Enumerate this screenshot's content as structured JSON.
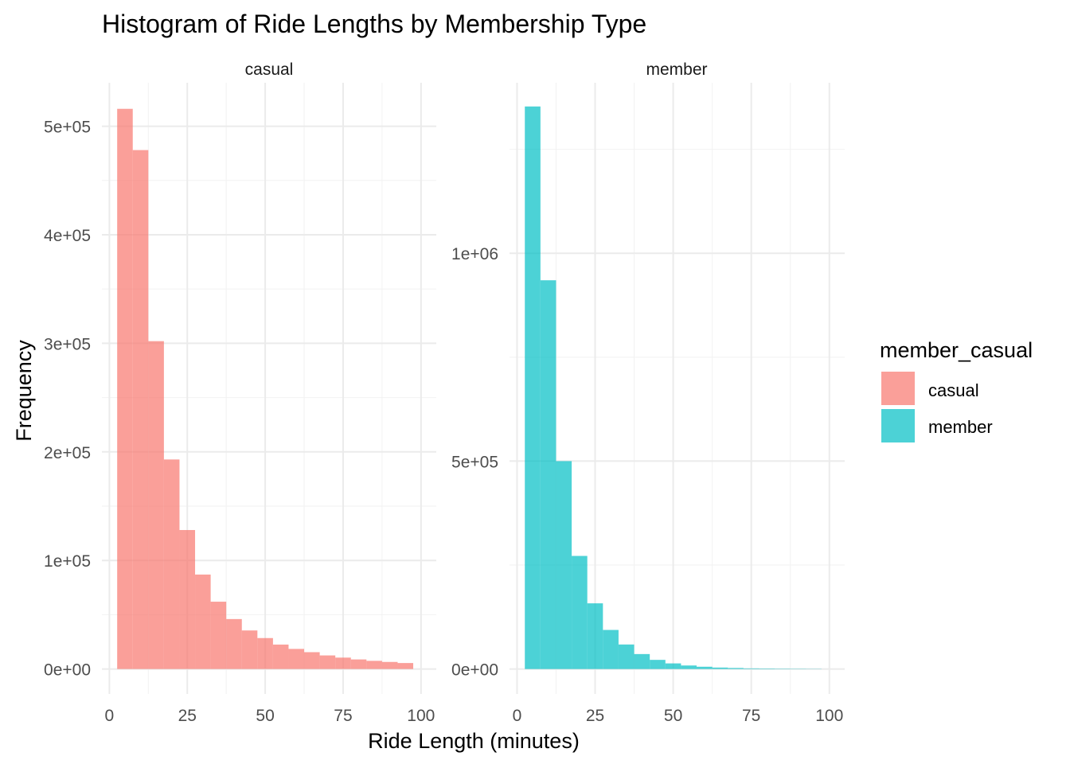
{
  "chart_data": {
    "type": "bar",
    "title": "Histogram of Ride Lengths by Membership Type",
    "xlabel": "Ride Length (minutes)",
    "ylabel": "Frequency",
    "legend": {
      "title": "member_casual",
      "placement": "right",
      "entries": [
        "casual",
        "member"
      ]
    },
    "grid": true,
    "bin_width": 5,
    "x_ticks": [
      "0",
      "25",
      "50",
      "75",
      "100"
    ],
    "x_tick_values": [
      0,
      25,
      50,
      75,
      100
    ],
    "xlim": [
      -2.4,
      104.9
    ],
    "panels": [
      {
        "label": "casual",
        "color": "#F8766D",
        "ylim": [
          -23000,
          540000
        ],
        "y_ticks": [
          "0e+00",
          "1e+05",
          "2e+05",
          "3e+05",
          "4e+05",
          "5e+05"
        ],
        "y_tick_values": [
          0,
          100000,
          200000,
          300000,
          400000,
          500000
        ],
        "y_minor_values": [
          50000,
          150000,
          250000,
          350000,
          450000
        ],
        "bins_start": [
          2.5,
          7.5,
          12.5,
          17.5,
          22.5,
          27.5,
          32.5,
          37.5,
          42.5,
          47.5,
          52.5,
          57.5,
          62.5,
          67.5,
          72.5,
          77.5,
          82.5,
          87.5,
          92.5
        ],
        "values": [
          516000,
          478000,
          302000,
          193000,
          128000,
          87000,
          62000,
          46000,
          35500,
          28500,
          22500,
          18500,
          15500,
          12500,
          10500,
          8800,
          7500,
          6500,
          5500
        ]
      },
      {
        "label": "member",
        "color": "#00BFC4",
        "ylim": [
          -60000,
          1410000
        ],
        "y_ticks": [
          "0e+00",
          "5e+05",
          "1e+06"
        ],
        "y_tick_values": [
          0,
          500000,
          1000000
        ],
        "y_minor_values": [
          250000,
          750000,
          1250000
        ],
        "bins_start": [
          2.5,
          7.5,
          12.5,
          17.5,
          22.5,
          27.5,
          32.5,
          37.5,
          42.5,
          47.5,
          52.5,
          57.5,
          62.5,
          67.5,
          72.5,
          77.5,
          82.5,
          87.5,
          92.5
        ],
        "values": [
          1353000,
          935000,
          500000,
          272000,
          158000,
          94000,
          59000,
          36000,
          22000,
          13500,
          8500,
          5500,
          3500,
          2500,
          1500,
          1200,
          900,
          700,
          500
        ]
      }
    ]
  }
}
